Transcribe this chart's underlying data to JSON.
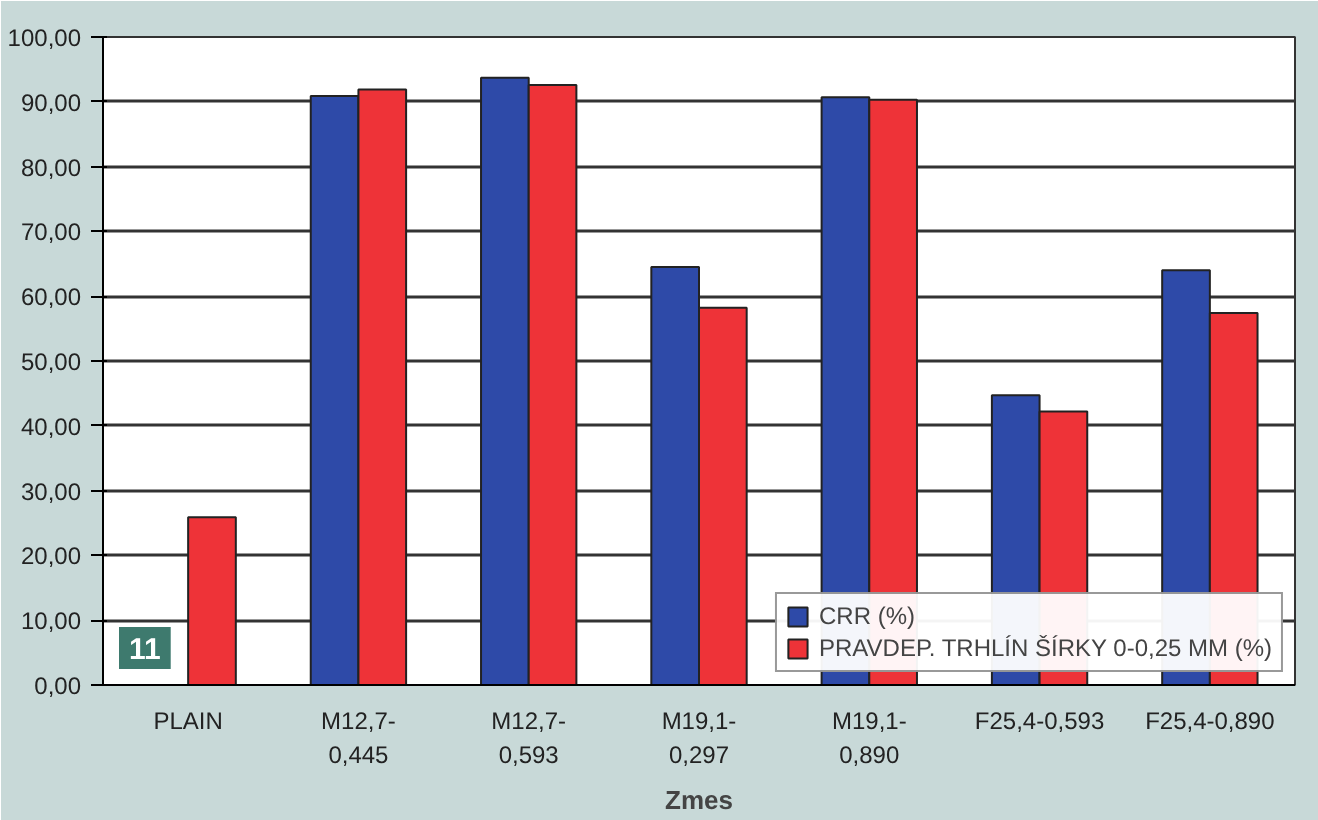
{
  "chart_data": {
    "type": "bar",
    "xlabel": "Zmes",
    "categories": [
      "PLAIN",
      "M12,7-\n0,445",
      "M12,7-\n0,593",
      "M19,1-\n0,297",
      "M19,1-\n0,890",
      "F25,4-0,593",
      "F25,4-0,890"
    ],
    "series": [
      {
        "name": "CRR (%)",
        "color": "#2e4aa8",
        "values": [
          null,
          90.9,
          93.7,
          64.5,
          90.7,
          44.7,
          64.0
        ]
      },
      {
        "name": "PRAVDEP. TRHLÍN ŠÍRKY 0-0,25 MM (%)",
        "color": "#ee3338",
        "values": [
          25.9,
          91.9,
          92.6,
          58.2,
          90.3,
          42.2,
          57.4
        ]
      }
    ],
    "ylim": [
      0,
      100
    ],
    "yticks": [
      {
        "value": 0,
        "label": "0,00"
      },
      {
        "value": 10,
        "label": "10,00"
      },
      {
        "value": 20,
        "label": "20,00"
      },
      {
        "value": 30,
        "label": "30,00"
      },
      {
        "value": 40,
        "label": "40,00"
      },
      {
        "value": 50,
        "label": "50,00"
      },
      {
        "value": 60,
        "label": "60,00"
      },
      {
        "value": 70,
        "label": "70,00"
      },
      {
        "value": 80,
        "label": "80,00"
      },
      {
        "value": 90,
        "label": "90,00"
      },
      {
        "value": 100,
        "label": "100,00"
      }
    ],
    "grid": "y",
    "legend": "bottom right",
    "annotations": [
      "11"
    ]
  }
}
